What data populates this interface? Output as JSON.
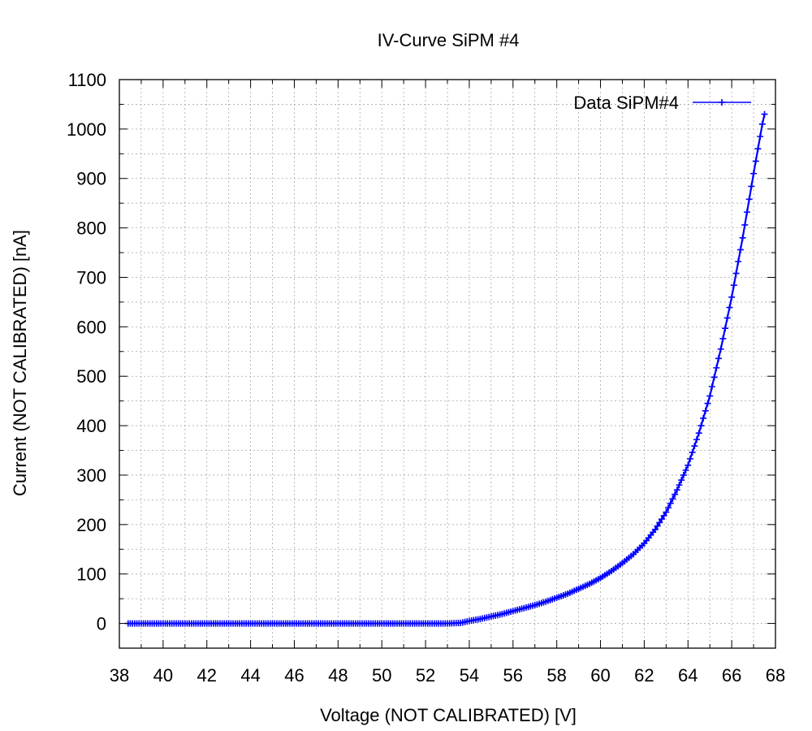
{
  "chart_data": {
    "type": "line",
    "title": "IV-Curve SiPM #4",
    "xlabel": "Voltage (NOT CALIBRATED) [V]",
    "ylabel": "Current (NOT CALIBRATED) [nA]",
    "xlim": [
      38,
      68
    ],
    "ylim": [
      -50,
      1100
    ],
    "xticks": [
      38,
      40,
      42,
      44,
      46,
      48,
      50,
      52,
      54,
      56,
      58,
      60,
      62,
      64,
      66,
      68
    ],
    "yticks": [
      0,
      100,
      200,
      300,
      400,
      500,
      600,
      700,
      800,
      900,
      1000,
      1100
    ],
    "grid": true,
    "legend_position": "top-right",
    "series": [
      {
        "name": "Data SiPM#4",
        "color": "#0000ff",
        "marker": "plus",
        "x": [
          38.4,
          39.0,
          40.0,
          41.0,
          42.0,
          43.0,
          44.0,
          45.0,
          46.0,
          47.0,
          48.0,
          49.0,
          50.0,
          51.0,
          52.0,
          53.0,
          53.6,
          54.0,
          54.5,
          55.0,
          55.5,
          56.0,
          56.5,
          57.0,
          57.5,
          58.0,
          58.5,
          59.0,
          59.5,
          60.0,
          60.5,
          61.0,
          61.5,
          62.0,
          62.5,
          63.0,
          63.5,
          64.0,
          64.5,
          65.0,
          65.5,
          66.0,
          66.5,
          67.0,
          67.2,
          67.4,
          67.5
        ],
        "y": [
          0,
          0,
          0,
          0,
          0,
          0,
          0,
          0,
          0,
          0,
          0,
          0,
          0,
          0,
          0,
          0,
          1,
          5,
          9,
          14,
          19,
          25,
          31,
          37,
          44,
          52,
          60,
          70,
          80,
          92,
          106,
          122,
          140,
          162,
          190,
          225,
          270,
          320,
          385,
          460,
          555,
          660,
          780,
          910,
          960,
          1010,
          1030
        ]
      }
    ]
  }
}
